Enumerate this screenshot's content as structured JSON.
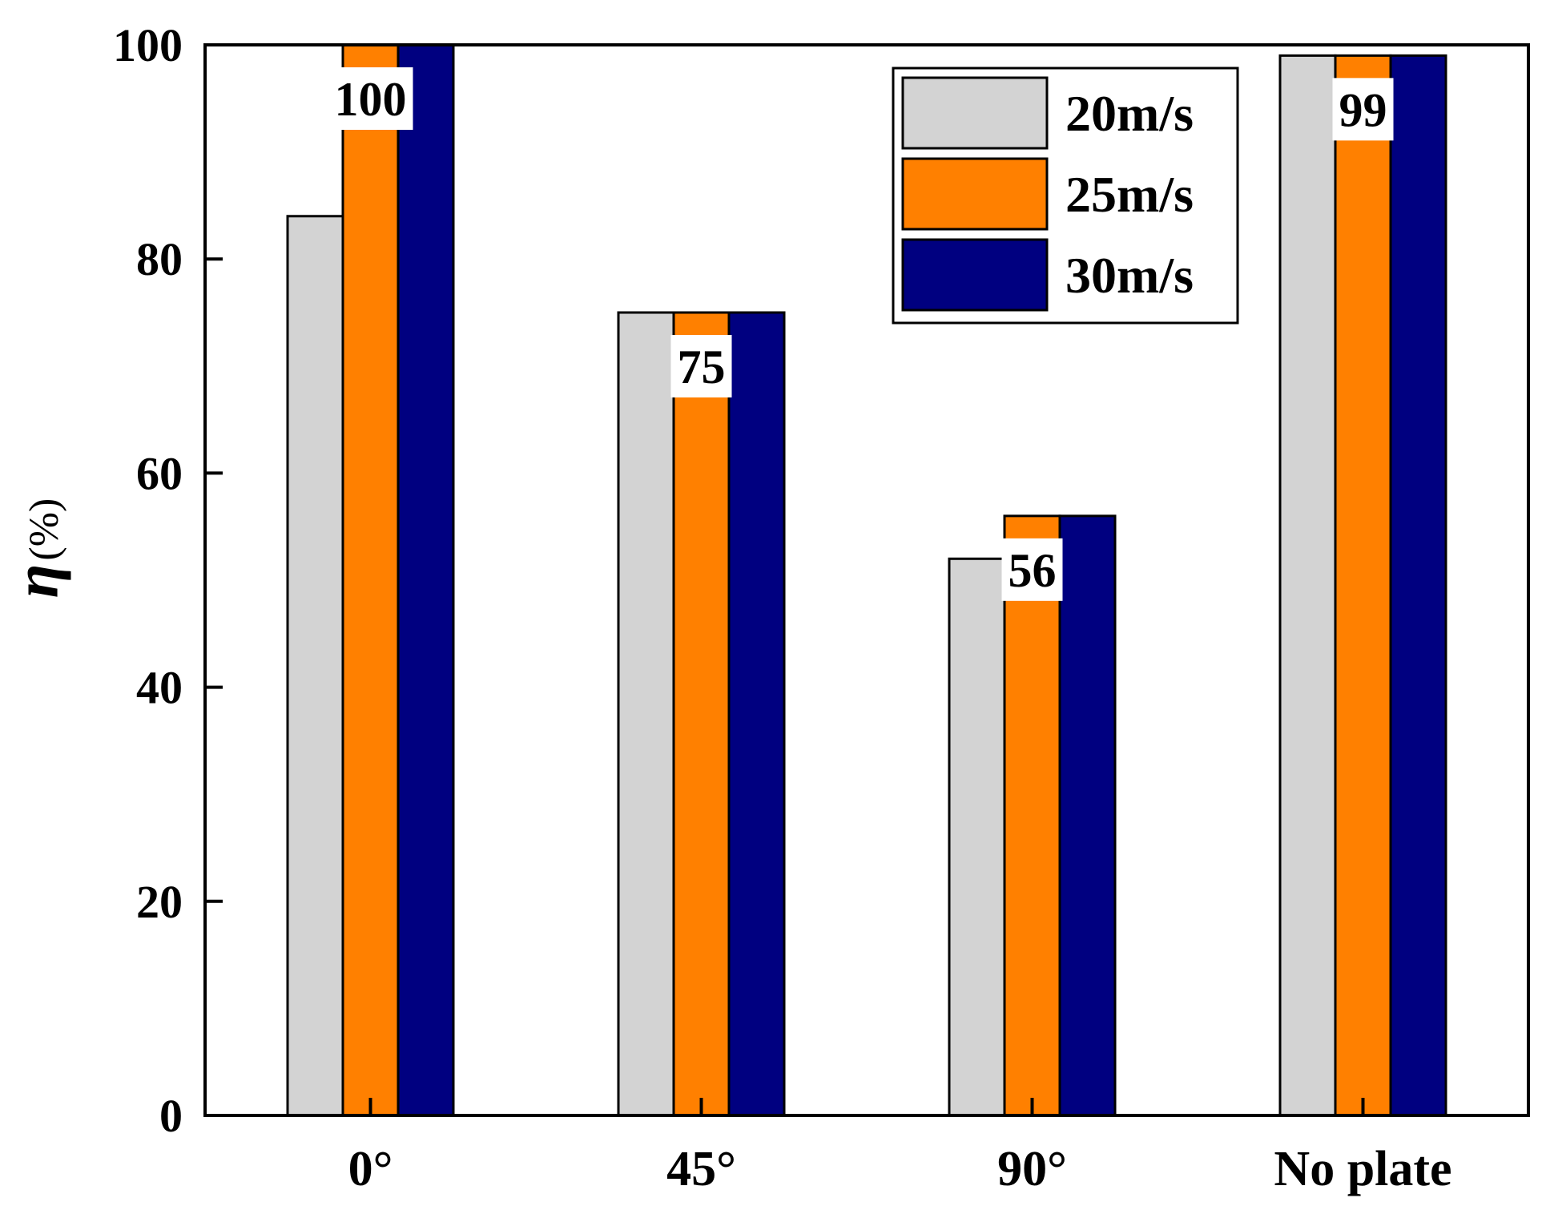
{
  "chart_data": {
    "type": "bar",
    "categories": [
      "0°",
      "45°",
      "90°",
      "No plate"
    ],
    "series": [
      {
        "name": "20m/s",
        "values": [
          84,
          75,
          52,
          99
        ],
        "color": "#d3d3d3"
      },
      {
        "name": "25m/s",
        "values": [
          100,
          75,
          56,
          99
        ],
        "color": "#ff8000"
      },
      {
        "name": "30m/s",
        "values": [
          100,
          75,
          56,
          99
        ],
        "color": "#000080"
      }
    ],
    "data_labels": [
      {
        "category_index": 0,
        "text": "100"
      },
      {
        "category_index": 1,
        "text": "75"
      },
      {
        "category_index": 2,
        "text": "56"
      },
      {
        "category_index": 3,
        "text": "99"
      }
    ],
    "ylabel_symbol": "η",
    "ylabel_unit": "(%)",
    "xlabel": "",
    "ylim": [
      0,
      100
    ],
    "yticks": [
      "0",
      "20",
      "40",
      "60",
      "80",
      "100"
    ],
    "grid": false,
    "legend_position": "top-right"
  }
}
